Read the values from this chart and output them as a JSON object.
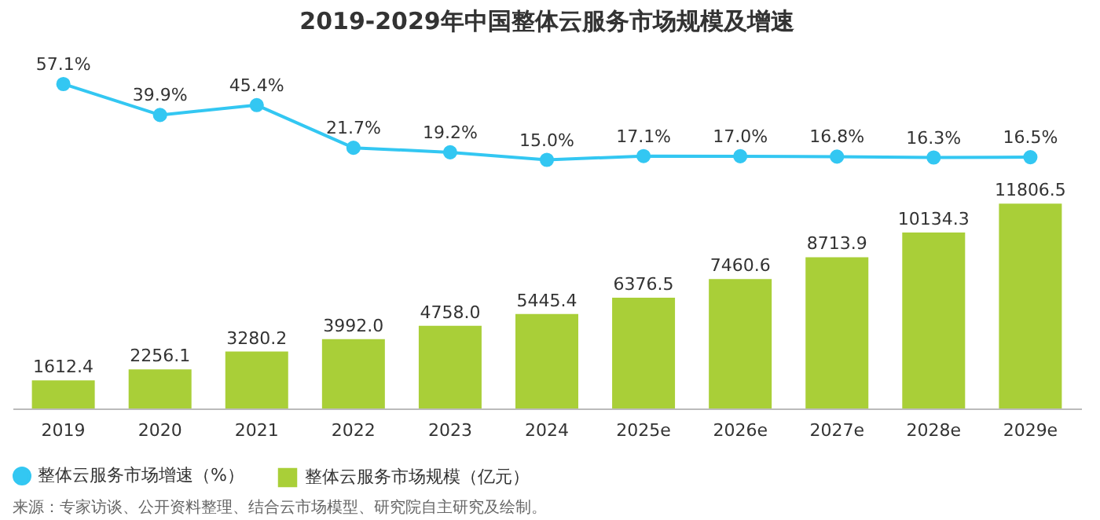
{
  "chart_data": [
    {
      "type": "line",
      "title": "2019-2029年中国整体云服务市场规模及增速",
      "categories": [
        "2019",
        "2020",
        "2021",
        "2022",
        "2023",
        "2024",
        "2025e",
        "2026e",
        "2027e",
        "2028e",
        "2029e"
      ],
      "series": [
        {
          "name": "整体云服务市场增速（%）",
          "color": "#33c7f2",
          "values": [
            57.1,
            39.9,
            45.4,
            21.7,
            19.2,
            15.0,
            17.1,
            17.0,
            16.8,
            16.3,
            16.5
          ],
          "value_labels": [
            "57.1%",
            "39.9%",
            "45.4%",
            "21.7%",
            "19.2%",
            "15.0%",
            "17.1%",
            "17.0%",
            "16.8%",
            "16.3%",
            "16.5%"
          ]
        }
      ],
      "legend": "bottom",
      "marker": "circle",
      "tick_labels": false
    },
    {
      "type": "bar",
      "categories": [
        "2019",
        "2020",
        "2021",
        "2022",
        "2023",
        "2024",
        "2025e",
        "2026e",
        "2027e",
        "2028e",
        "2029e"
      ],
      "series": [
        {
          "name": "整体云服务市场规模（亿元）",
          "color": "#a9cf38",
          "values": [
            1612.4,
            2256.1,
            3280.2,
            3992.0,
            4758.0,
            5445.4,
            6376.5,
            7460.6,
            8713.9,
            10134.3,
            11806.5
          ],
          "value_labels": [
            "1612.4",
            "2256.1",
            "3280.2",
            "3992.0",
            "4758.0",
            "5445.4",
            "6376.5",
            "7460.6",
            "8713.9",
            "10134.3",
            "11806.5"
          ]
        }
      ],
      "legend": "bottom",
      "annotations": [
        "来源：专家访谈、公开资料整理、结合云市场模型、研究院自主研究及绘制。"
      ]
    }
  ]
}
